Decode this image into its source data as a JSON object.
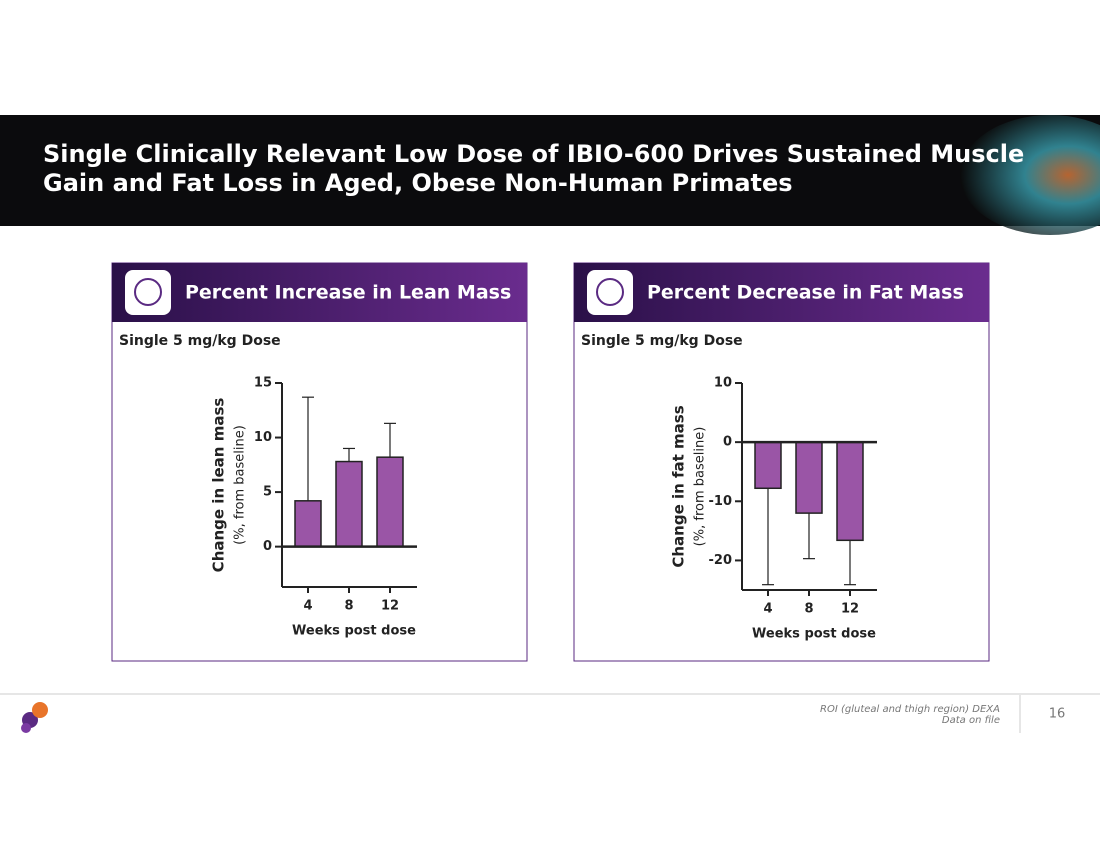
{
  "header": {
    "title_lines": [
      "Single Clinically Relevant Low Dose of IBIO-600 Drives Sustained Muscle",
      "Gain and Fat Loss in Aged, Obese Non-Human Primates"
    ]
  },
  "chart_data": [
    {
      "type": "bar",
      "title": "Percent Increase in Lean Mass",
      "subtitle": "Single 5 mg/kg Dose",
      "ylabel": "Change in lean mass",
      "ylabel_note": "(%, from baseline)",
      "xlabel": "Weeks post dose",
      "categories": [
        "4",
        "8",
        "12"
      ],
      "values": [
        4.2,
        7.8,
        8.2
      ],
      "errors": [
        9.5,
        1.2,
        3.1
      ],
      "color": "#9a55a6",
      "ylim": [
        -3.7,
        15
      ],
      "yticks": [
        0,
        5,
        10,
        15
      ]
    },
    {
      "type": "bar",
      "title": "Percent Decrease in Fat Mass",
      "subtitle": "Single 5 mg/kg Dose",
      "ylabel": "Change in fat mass",
      "ylabel_note": "(%, from baseline)",
      "xlabel": "Weeks post dose",
      "categories": [
        "4",
        "8",
        "12"
      ],
      "values": [
        -7.8,
        -12.0,
        -16.6
      ],
      "errors": [
        16.3,
        7.7,
        7.5
      ],
      "color": "#9a55a6",
      "ylim": [
        -25,
        10
      ],
      "yticks": [
        -20,
        -10,
        0,
        10
      ]
    }
  ],
  "footer": {
    "notes": [
      "ROI (gluteal and thigh region) DEXA",
      "Data on file"
    ],
    "page_number": "16"
  }
}
